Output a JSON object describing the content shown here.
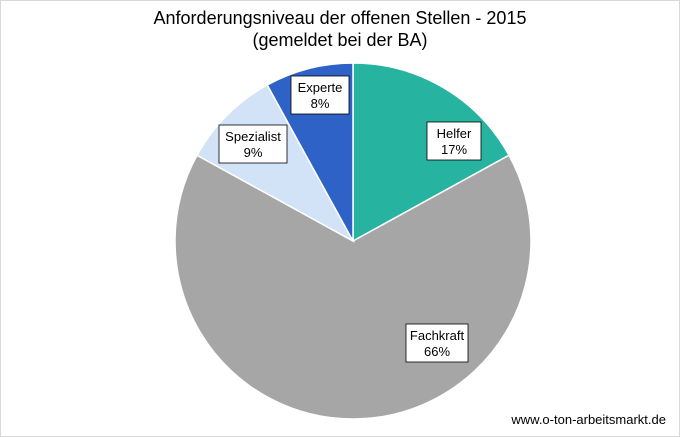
{
  "chart_data": {
    "type": "pie",
    "title": "Anforderungsniveau der offenen Stellen - 2015",
    "subtitle": "(gemeldet bei der BA)",
    "slices": [
      {
        "label": "Helfer",
        "value": 17,
        "value_label": "17%",
        "color": "#26b3a0"
      },
      {
        "label": "Fachkraft",
        "value": 66,
        "value_label": "66%",
        "color": "#a6a6a6"
      },
      {
        "label": "Spezialist",
        "value": 9,
        "value_label": "9%",
        "color": "#d2e2f7"
      },
      {
        "label": "Experte",
        "value": 8,
        "value_label": "8%",
        "color": "#2e62c7"
      }
    ],
    "start": "12 o'clock, clockwise",
    "legend": "none"
  },
  "footer": {
    "credit": "www.o-ton-arbeitsmarkt.de"
  }
}
